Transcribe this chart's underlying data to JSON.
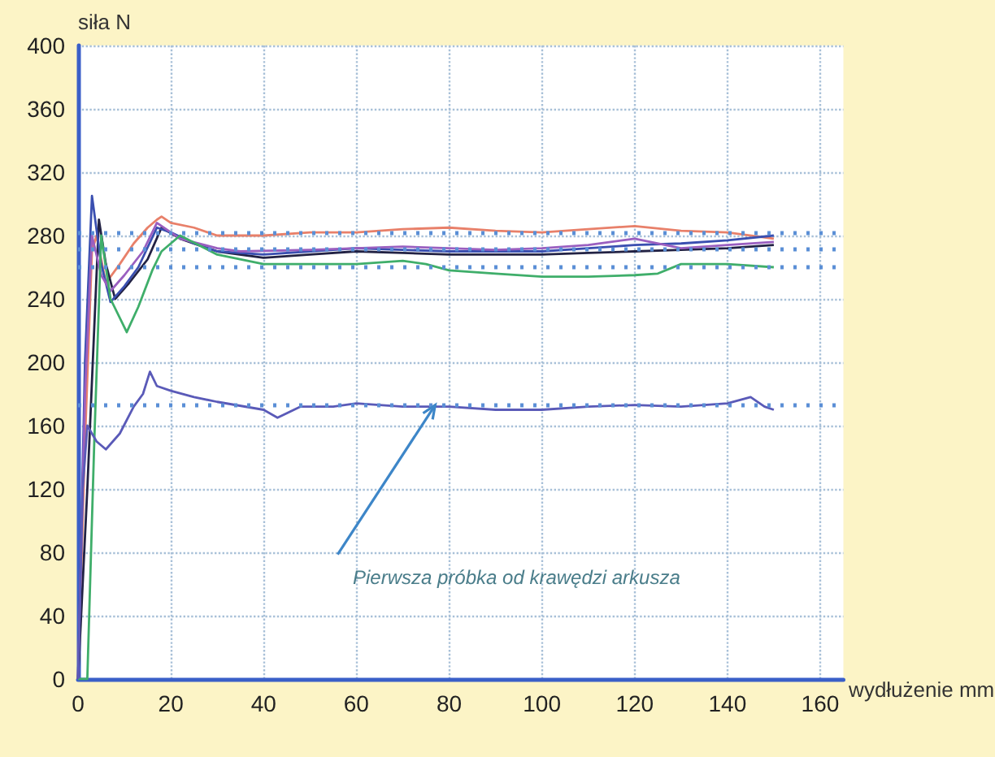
{
  "chart_data": {
    "type": "line",
    "xlabel": "wydłużenie mm",
    "ylabel": "siła N",
    "xlim": [
      0,
      165
    ],
    "xticks": [
      0,
      20,
      40,
      60,
      80,
      100,
      120,
      140,
      160
    ],
    "ylim": [
      0,
      400
    ],
    "yticks": [
      0,
      40,
      80,
      120,
      160,
      200,
      240,
      280,
      320,
      360,
      400
    ],
    "grid": true,
    "marker": "none",
    "line_style": "solid",
    "series": [
      {
        "color": "#e8806a",
        "x": [
          0,
          1.5,
          3,
          4,
          6,
          9,
          12,
          15,
          17,
          18,
          20,
          25,
          30,
          40,
          50,
          60,
          70,
          80,
          90,
          100,
          110,
          120,
          130,
          140,
          150
        ],
        "values": [
          0,
          150,
          270,
          280,
          250,
          262,
          275,
          285,
          290,
          292,
          288,
          285,
          280,
          280,
          282,
          282,
          284,
          285,
          283,
          282,
          284,
          286,
          283,
          282,
          278
        ]
      },
      {
        "color": "#222244",
        "x": [
          0,
          2,
          4.5,
          6,
          8,
          11,
          15,
          18,
          22,
          30,
          40,
          50,
          60,
          70,
          80,
          90,
          100,
          110,
          120,
          130,
          140,
          150
        ],
        "values": [
          0,
          120,
          290,
          262,
          240,
          250,
          265,
          285,
          278,
          270,
          266,
          268,
          270,
          269,
          268,
          268,
          268,
          269,
          270,
          271,
          272,
          274
        ]
      },
      {
        "color": "#3a4fb0",
        "x": [
          0,
          1.5,
          3,
          5,
          7,
          10,
          13,
          17,
          20,
          25,
          30,
          40,
          50,
          60,
          70,
          80,
          90,
          100,
          110,
          120,
          130,
          140,
          150
        ],
        "values": [
          0,
          200,
          305,
          262,
          238,
          248,
          260,
          285,
          282,
          275,
          270,
          268,
          270,
          272,
          271,
          270,
          270,
          270,
          272,
          274,
          275,
          277,
          280
        ]
      },
      {
        "color": "#9a5fc0",
        "x": [
          0,
          1.5,
          3,
          5,
          7,
          10,
          14,
          17,
          22,
          30,
          35,
          50,
          60,
          70,
          80,
          90,
          100,
          110,
          120,
          130,
          140,
          150
        ],
        "values": [
          0,
          180,
          280,
          255,
          245,
          255,
          270,
          288,
          278,
          272,
          270,
          271,
          272,
          273,
          272,
          271,
          272,
          274,
          278,
          272,
          274,
          276
        ]
      },
      {
        "color": "#3fae6a",
        "x": [
          0,
          2,
          3.5,
          5,
          7,
          10.5,
          13,
          16,
          18,
          22,
          30,
          40,
          50,
          60,
          70,
          75,
          80,
          90,
          100,
          110,
          120,
          125,
          130,
          140,
          150
        ],
        "values": [
          0,
          0,
          150,
          280,
          240,
          219,
          235,
          258,
          270,
          280,
          268,
          262,
          262,
          262,
          264,
          262,
          258,
          256,
          254,
          254,
          255,
          256,
          262,
          262,
          260
        ]
      },
      {
        "color": "#5a5ab8",
        "x": [
          0,
          1,
          2,
          4,
          6,
          9,
          12,
          14,
          15.5,
          17,
          20,
          25,
          30,
          40,
          43,
          48,
          55,
          60,
          70,
          80,
          90,
          100,
          110,
          120,
          130,
          140,
          145,
          148,
          150
        ],
        "values": [
          0,
          120,
          160,
          150,
          145,
          155,
          172,
          180,
          194,
          185,
          182,
          178,
          175,
          170,
          165,
          172,
          172,
          174,
          172,
          172,
          170,
          170,
          172,
          173,
          172,
          174,
          178,
          172,
          170
        ]
      }
    ],
    "ref_lines": [
      {
        "axis": "y",
        "value": 282,
        "color": "#5b8fd6",
        "line_style": "dotted"
      },
      {
        "axis": "y",
        "value": 272,
        "color": "#5b8fd6",
        "line_style": "dotted"
      },
      {
        "axis": "y",
        "value": 260,
        "color": "#5b8fd6",
        "line_style": "dotted"
      },
      {
        "axis": "y",
        "value": 173,
        "color": "#5b8fd6",
        "line_style": "dotted"
      }
    ],
    "annotations": [
      {
        "text": "Pierwsza próbka od krawędzi arkusza",
        "x": 77,
        "y": 173
      }
    ]
  }
}
